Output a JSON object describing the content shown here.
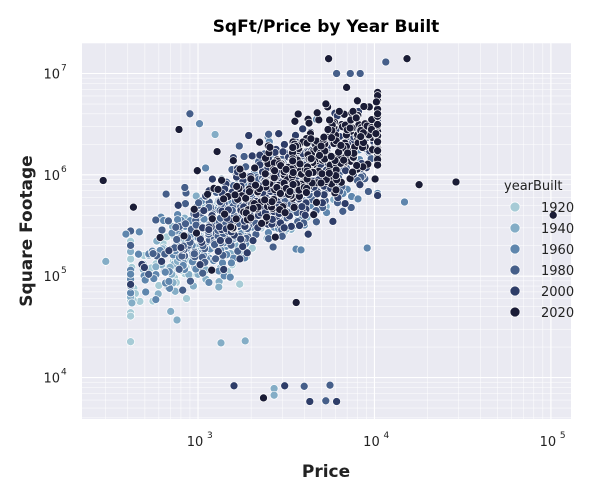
{
  "chart_data": {
    "type": "scatter",
    "title": "SqFt/Price by Year Built",
    "xlabel": "Price",
    "ylabel": "Square Footage",
    "xscale": "log",
    "yscale": "log",
    "xlim": [
      220,
      130000
    ],
    "ylim": [
      3900,
      20000000
    ],
    "x_ticks": [
      {
        "base": "10",
        "exp": "3",
        "value": 1000
      },
      {
        "base": "10",
        "exp": "4",
        "value": 10000
      },
      {
        "base": "10",
        "exp": "5",
        "value": 100000
      }
    ],
    "y_ticks": [
      {
        "base": "10",
        "exp": "4",
        "value": 10000
      },
      {
        "base": "10",
        "exp": "5",
        "value": 100000
      },
      {
        "base": "10",
        "exp": "6",
        "value": 1000000
      },
      {
        "base": "10",
        "exp": "7",
        "value": 10000000
      }
    ],
    "grid": true,
    "legend": {
      "title": "yearBuilt",
      "position": "right",
      "entries": [
        {
          "label": "1920",
          "color": "#a6cbd6"
        },
        {
          "label": "1940",
          "color": "#84adc6"
        },
        {
          "label": "1960",
          "color": "#5f86ad"
        },
        {
          "label": "1980",
          "color": "#465f8a"
        },
        {
          "label": "2000",
          "color": "#2e3d68"
        },
        {
          "label": "2020",
          "color": "#1a1c36"
        }
      ]
    },
    "cluster": {
      "description_free": true,
      "slope": 1.0,
      "center_x": 2500,
      "center_y": 600000,
      "x_range": [
        400,
        8000
      ],
      "point_count": 1800
    },
    "points": [
      {
        "x": 290,
        "y": 880000,
        "year": 2020
      },
      {
        "x": 300,
        "y": 140000,
        "year": 1940
      },
      {
        "x": 390,
        "y": 260000,
        "year": 1960
      },
      {
        "x": 430,
        "y": 480000,
        "year": 2020
      },
      {
        "x": 460,
        "y": 165000,
        "year": 1960
      },
      {
        "x": 700,
        "y": 45000,
        "year": 1940
      },
      {
        "x": 760,
        "y": 37000,
        "year": 1940
      },
      {
        "x": 780,
        "y": 2800000,
        "year": 2020
      },
      {
        "x": 900,
        "y": 4000000,
        "year": 1980
      },
      {
        "x": 1020,
        "y": 3200000,
        "year": 1960
      },
      {
        "x": 1250,
        "y": 2500000,
        "year": 1940
      },
      {
        "x": 1350,
        "y": 22000,
        "year": 1940
      },
      {
        "x": 1600,
        "y": 8300,
        "year": 2000
      },
      {
        "x": 1850,
        "y": 23000,
        "year": 1940
      },
      {
        "x": 2350,
        "y": 6300,
        "year": 2020
      },
      {
        "x": 2700,
        "y": 7800,
        "year": 1940
      },
      {
        "x": 2700,
        "y": 6700,
        "year": 1940
      },
      {
        "x": 3100,
        "y": 8300,
        "year": 2000
      },
      {
        "x": 3600,
        "y": 55000,
        "year": 2020
      },
      {
        "x": 4000,
        "y": 8200,
        "year": 1980
      },
      {
        "x": 4300,
        "y": 5800,
        "year": 2000
      },
      {
        "x": 5300,
        "y": 5900,
        "year": 1980
      },
      {
        "x": 5600,
        "y": 8400,
        "year": 1980
      },
      {
        "x": 6100,
        "y": 5800,
        "year": 2000
      },
      {
        "x": 5500,
        "y": 14000000,
        "year": 2020
      },
      {
        "x": 6100,
        "y": 10000000,
        "year": 1980
      },
      {
        "x": 7300,
        "y": 10000000,
        "year": 1980
      },
      {
        "x": 8300,
        "y": 10000000,
        "year": 1980
      },
      {
        "x": 11600,
        "y": 13000000,
        "year": 1980
      },
      {
        "x": 15300,
        "y": 14000000,
        "year": 2020
      },
      {
        "x": 9100,
        "y": 190000,
        "year": 1960
      },
      {
        "x": 14800,
        "y": 540000,
        "year": 1960
      },
      {
        "x": 17900,
        "y": 800000,
        "year": 2020
      },
      {
        "x": 29000,
        "y": 850000,
        "year": 2020
      },
      {
        "x": 103000,
        "y": 400000,
        "year": 2020
      }
    ]
  }
}
